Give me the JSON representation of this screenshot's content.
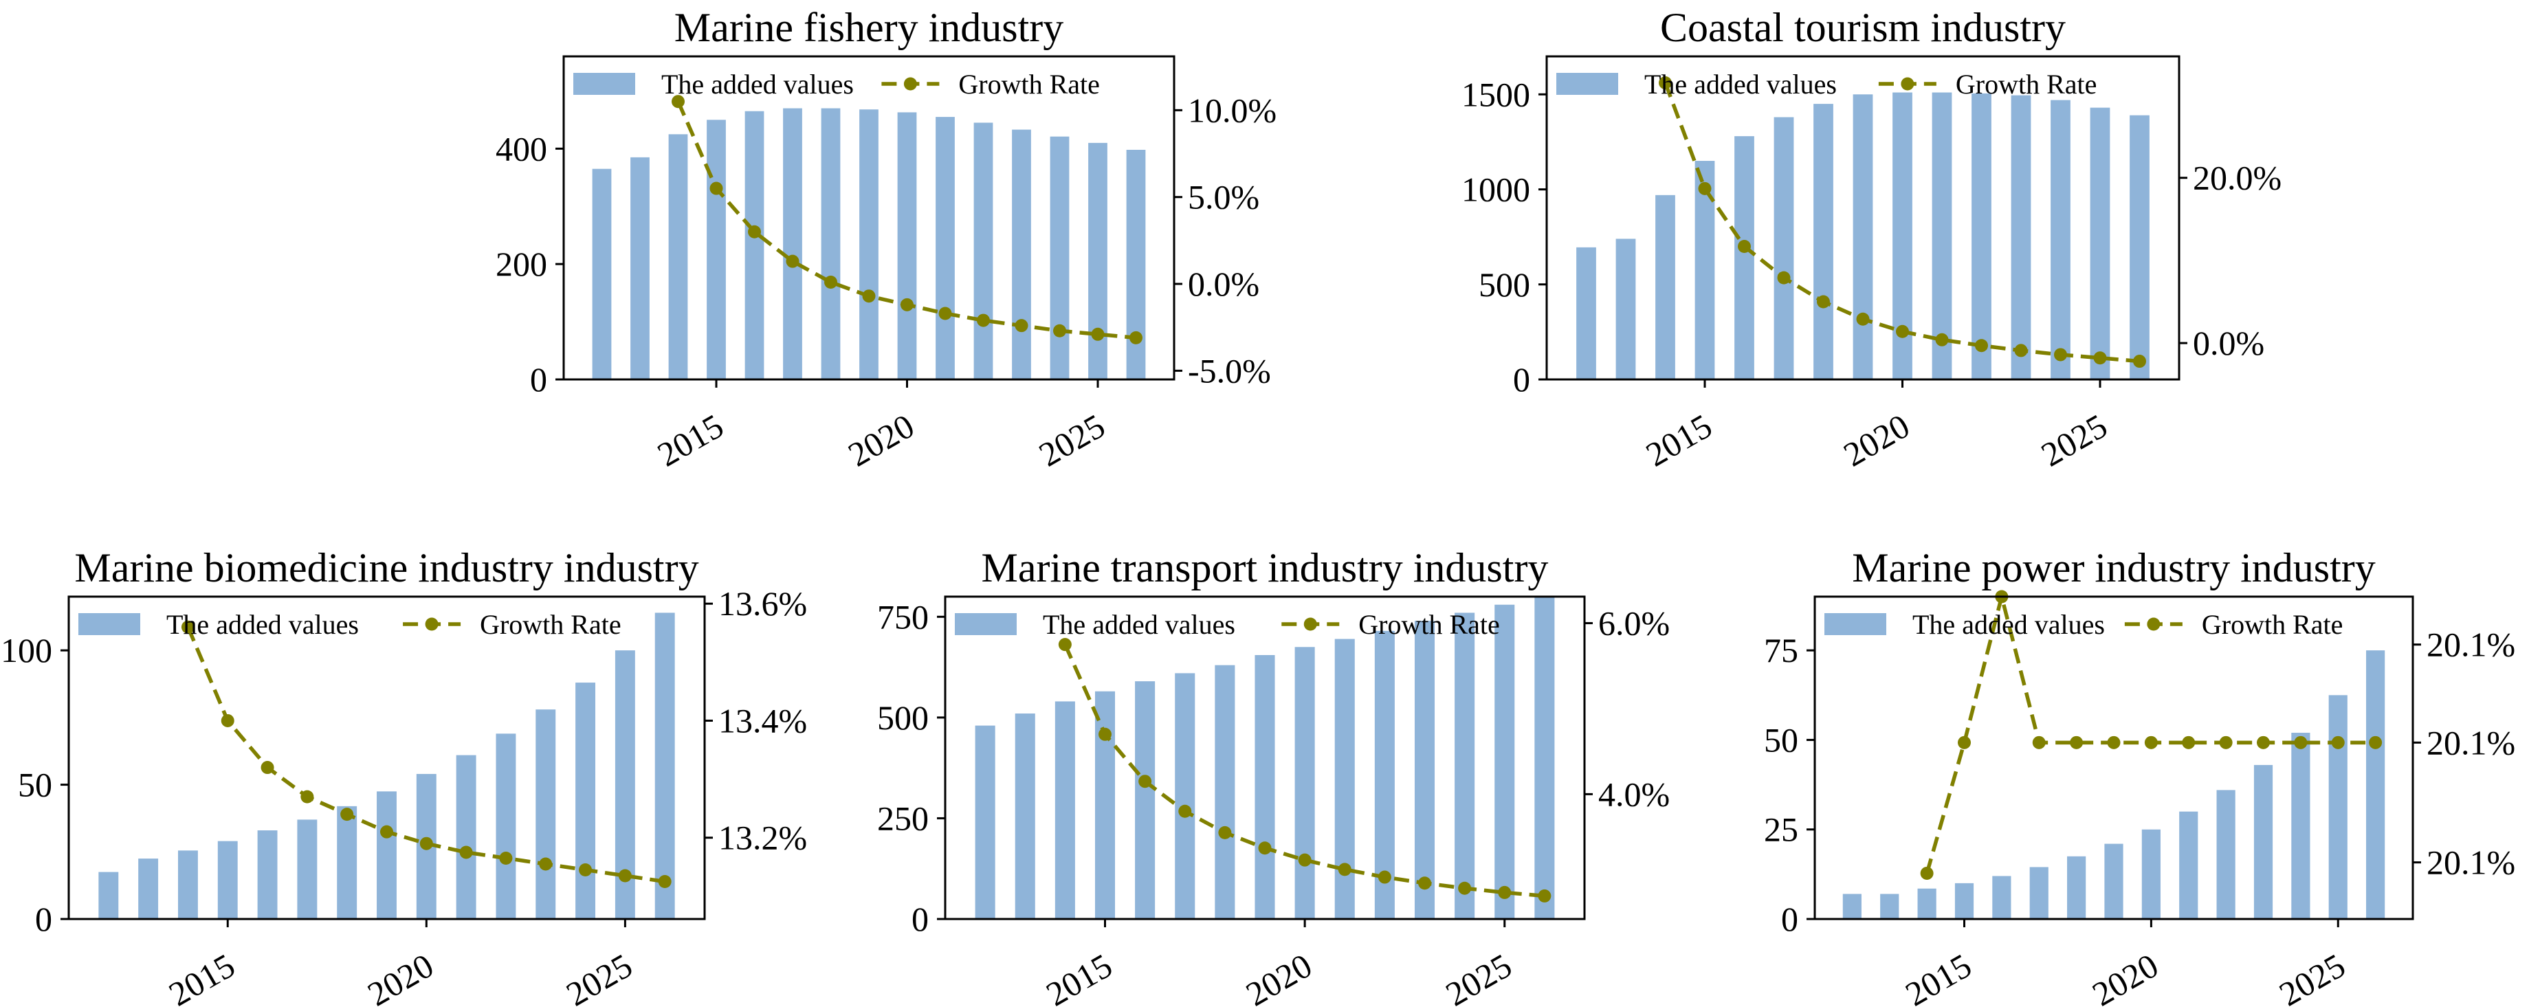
{
  "figure": {
    "background": "#ffffff"
  },
  "colors": {
    "bar": "#8fb4d9",
    "line": "#808000"
  },
  "legend": {
    "bar_label": "The added values",
    "line_label": "Growth Rate"
  },
  "chart_data": [
    {
      "type": "bar+line",
      "title": "Marine fishery industry",
      "years": [
        2012,
        2013,
        2014,
        2015,
        2016,
        2017,
        2018,
        2019,
        2020,
        2021,
        2022,
        2023,
        2024,
        2025,
        2026
      ],
      "values": [
        365,
        385,
        425,
        450,
        465,
        470,
        470,
        468,
        463,
        455,
        445,
        433,
        421,
        410,
        398
      ],
      "growth_years": [
        2014,
        2015,
        2016,
        2017,
        2018,
        2019,
        2020,
        2021,
        2022,
        2023,
        2024,
        2025,
        2026
      ],
      "growth": [
        10.5,
        5.5,
        3.0,
        1.3,
        0.1,
        -0.7,
        -1.2,
        -1.7,
        -2.1,
        -2.4,
        -2.7,
        -2.9,
        -3.1
      ],
      "xlim": [
        2011,
        2027
      ],
      "ylim": [
        0,
        560
      ],
      "y2lim": [
        -5.5,
        13.1
      ],
      "xticks": [
        2015,
        2020,
        2025
      ],
      "xtick_labels": [
        "2015",
        "2020",
        "2025"
      ],
      "yticks": [
        0,
        200,
        400
      ],
      "ytick_labels": [
        "0",
        "200",
        "400"
      ],
      "y2ticks": [
        -5,
        0,
        5,
        10
      ],
      "y2tick_labels": [
        "-5.0%",
        "0.0%",
        "5.0%",
        "10.0%"
      ]
    },
    {
      "type": "bar+line",
      "title": "Coastal tourism industry",
      "years": [
        2012,
        2013,
        2014,
        2015,
        2016,
        2017,
        2018,
        2019,
        2020,
        2021,
        2022,
        2023,
        2024,
        2025,
        2026
      ],
      "values": [
        695,
        740,
        970,
        1150,
        1280,
        1380,
        1450,
        1500,
        1510,
        1510,
        1505,
        1495,
        1470,
        1430,
        1390
      ],
      "growth_years": [
        2014,
        2015,
        2016,
        2017,
        2018,
        2019,
        2020,
        2021,
        2022,
        2023,
        2024,
        2025,
        2026
      ],
      "growth": [
        31.5,
        18.7,
        11.7,
        7.9,
        5.0,
        2.9,
        1.4,
        0.4,
        -0.3,
        -0.9,
        -1.4,
        -1.8,
        -2.2
      ],
      "xlim": [
        2011,
        2027
      ],
      "ylim": [
        0,
        1700
      ],
      "y2lim": [
        -4.4,
        34.7
      ],
      "xticks": [
        2015,
        2020,
        2025
      ],
      "xtick_labels": [
        "2015",
        "2020",
        "2025"
      ],
      "yticks": [
        0,
        500,
        1000,
        1500
      ],
      "ytick_labels": [
        "0",
        "500",
        "1000",
        "1500"
      ],
      "y2ticks": [
        0,
        20
      ],
      "y2tick_labels": [
        "0.0%",
        "20.0%"
      ]
    },
    {
      "type": "bar+line",
      "title": "Marine biomedicine industry industry",
      "years": [
        2012,
        2013,
        2014,
        2015,
        2016,
        2017,
        2018,
        2019,
        2020,
        2021,
        2022,
        2023,
        2024,
        2025,
        2026
      ],
      "values": [
        17.5,
        22.5,
        25.5,
        29,
        33,
        37,
        42,
        47.5,
        54,
        61,
        69,
        78,
        88,
        100,
        114
      ],
      "growth_years": [
        2014,
        2015,
        2016,
        2017,
        2018,
        2019,
        2020,
        2021,
        2022,
        2023,
        2024,
        2025,
        2026
      ],
      "growth": [
        13.56,
        13.4,
        13.32,
        13.27,
        13.24,
        13.21,
        13.19,
        13.175,
        13.165,
        13.155,
        13.145,
        13.135,
        13.125
      ],
      "xlim": [
        2011,
        2027
      ],
      "ylim": [
        0,
        120
      ],
      "y2lim": [
        13.061,
        13.612
      ],
      "xticks": [
        2015,
        2020,
        2025
      ],
      "xtick_labels": [
        "2015",
        "2020",
        "2025"
      ],
      "yticks": [
        0,
        50,
        100
      ],
      "ytick_labels": [
        "0",
        "50",
        "100"
      ],
      "y2ticks": [
        13.2,
        13.4,
        13.6
      ],
      "y2tick_labels": [
        "13.2%",
        "13.4%",
        "13.6%"
      ]
    },
    {
      "type": "bar+line",
      "title": "Marine transport industry industry",
      "years": [
        2012,
        2013,
        2014,
        2015,
        2016,
        2017,
        2018,
        2019,
        2020,
        2021,
        2022,
        2023,
        2024,
        2025,
        2026
      ],
      "values": [
        480,
        510,
        540,
        565,
        590,
        610,
        630,
        655,
        675,
        695,
        715,
        740,
        760,
        780,
        800
      ],
      "growth_years": [
        2014,
        2015,
        2016,
        2017,
        2018,
        2019,
        2020,
        2021,
        2022,
        2023,
        2024,
        2025,
        2026
      ],
      "growth": [
        5.75,
        4.7,
        4.15,
        3.8,
        3.55,
        3.37,
        3.23,
        3.12,
        3.03,
        2.96,
        2.9,
        2.85,
        2.81
      ],
      "xlim": [
        2011,
        2027
      ],
      "ylim": [
        0,
        800
      ],
      "y2lim": [
        2.54,
        6.31
      ],
      "xticks": [
        2015,
        2020,
        2025
      ],
      "xtick_labels": [
        "2015",
        "2020",
        "2025"
      ],
      "yticks": [
        0,
        250,
        500,
        750
      ],
      "ytick_labels": [
        "0",
        "250",
        "500",
        "750"
      ],
      "y2ticks": [
        4,
        6
      ],
      "y2tick_labels": [
        "4.0%",
        "6.0%"
      ]
    },
    {
      "type": "bar+line",
      "title": "Marine power industry industry",
      "years": [
        2012,
        2013,
        2014,
        2015,
        2016,
        2017,
        2018,
        2019,
        2020,
        2021,
        2022,
        2023,
        2024,
        2025,
        2026
      ],
      "values": [
        7,
        7,
        8.5,
        10,
        12,
        14.5,
        17.5,
        21,
        25,
        30,
        36,
        43,
        52,
        62.5,
        75
      ],
      "growth_years": [
        2014,
        2015,
        2016,
        2017,
        2018,
        2019,
        2020,
        2021,
        2022,
        2023,
        2024,
        2025,
        2026
      ],
      "growth": [
        20.0995,
        20.1055,
        20.1122,
        20.1055,
        20.1055,
        20.1055,
        20.1055,
        20.1055,
        20.1055,
        20.1055,
        20.1055,
        20.1055,
        20.1055
      ],
      "xlim": [
        2011,
        2027
      ],
      "ylim": [
        0,
        90
      ],
      "y2lim": [
        20.0974,
        20.1122
      ],
      "xticks": [
        2015,
        2020,
        2025
      ],
      "xtick_labels": [
        "2015",
        "2020",
        "2025"
      ],
      "yticks": [
        0,
        25,
        50,
        75
      ],
      "ytick_labels": [
        "0",
        "25",
        "50",
        "75"
      ],
      "y2ticks": [
        20.1,
        20.1055,
        20.11
      ],
      "y2tick_labels": [
        "20.1%",
        "20.1%",
        "20.1%"
      ]
    }
  ]
}
